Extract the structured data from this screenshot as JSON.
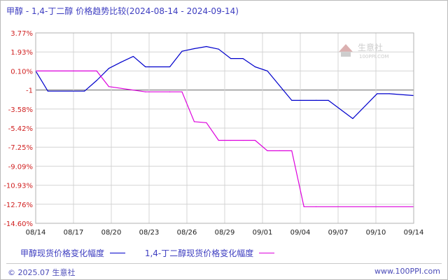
{
  "title": "甲醇 - 1,4-丁二醇 价格趋势比较(2024-08-14 - 2024-09-14)",
  "watermark": {
    "brand": "生意社",
    "url": "100PPI.COM"
  },
  "footer": {
    "copyright": "© 2025.07 生意社",
    "url": "www.100PPI.com"
  },
  "colors": {
    "series1": "#0000cc",
    "series2": "#dd00dd",
    "title": "#3d3dc0",
    "ytick": "#d02020",
    "grid": "#c8c8c8"
  },
  "chart_data": {
    "type": "line",
    "title": "甲醇 - 1,4-丁二醇 价格趋势比较(2024-08-14 - 2024-09-14)",
    "x_start": "2024-08-14",
    "x_end": "2024-09-14",
    "x_tick_labels": [
      "08/14",
      "08/17",
      "08/20",
      "08/23",
      "08/26",
      "08/29",
      "09/01",
      "09/04",
      "09/07",
      "09/10",
      "09/14"
    ],
    "y_tick_labels": [
      "3.77%",
      "1.93%",
      "0.10%",
      "-1",
      "-3.58%",
      "-5.42%",
      "-7.25%",
      "-9.09%",
      "-10.93%",
      "-12.76%",
      "-14.60%"
    ],
    "y_tick_values": [
      3.77,
      1.93,
      0.1,
      -1.0,
      -3.58,
      -5.42,
      -7.25,
      -9.09,
      -10.93,
      -12.76,
      -14.6
    ],
    "ylim": [
      -14.6,
      3.77
    ],
    "grid": true,
    "legend_position": "bottom-left",
    "series": [
      {
        "name": "甲醇现货价格变化幅度",
        "color": "#0000cc",
        "x": [
          "2024-08-14",
          "2024-08-15",
          "2024-08-18",
          "2024-08-19",
          "2024-08-20",
          "2024-08-21",
          "2024-08-22",
          "2024-08-23",
          "2024-08-25",
          "2024-08-26",
          "2024-08-27",
          "2024-08-28",
          "2024-08-29",
          "2024-08-30",
          "2024-08-31",
          "2024-09-01",
          "2024-09-02",
          "2024-09-04",
          "2024-09-06",
          "2024-09-07",
          "2024-09-09",
          "2024-09-11",
          "2024-09-12",
          "2024-09-14"
        ],
        "values": [
          0.1,
          -1.15,
          -1.15,
          -0.45,
          0.35,
          0.95,
          1.5,
          0.5,
          0.5,
          2.0,
          2.25,
          2.45,
          2.2,
          1.3,
          1.3,
          0.5,
          0.1,
          -2.4,
          -2.4,
          -2.4,
          -4.5,
          -1.5,
          -1.5,
          -1.75
        ]
      },
      {
        "name": "1,4-丁二醇现货价格变化幅度",
        "color": "#dd00dd",
        "x": [
          "2024-08-14",
          "2024-08-19",
          "2024-08-20",
          "2024-08-23",
          "2024-08-25",
          "2024-08-26",
          "2024-08-27",
          "2024-08-28",
          "2024-08-29",
          "2024-08-30",
          "2024-08-31",
          "2024-09-01",
          "2024-09-02",
          "2024-09-03",
          "2024-09-04",
          "2024-09-05",
          "2024-09-06",
          "2024-09-14"
        ],
        "values": [
          0.1,
          0.1,
          -0.8,
          -1.25,
          -1.25,
          -1.25,
          -4.8,
          -4.9,
          -6.6,
          -6.6,
          -6.6,
          -6.6,
          -7.6,
          -7.6,
          -7.6,
          -13.0,
          -13.0,
          -13.0
        ]
      }
    ]
  }
}
